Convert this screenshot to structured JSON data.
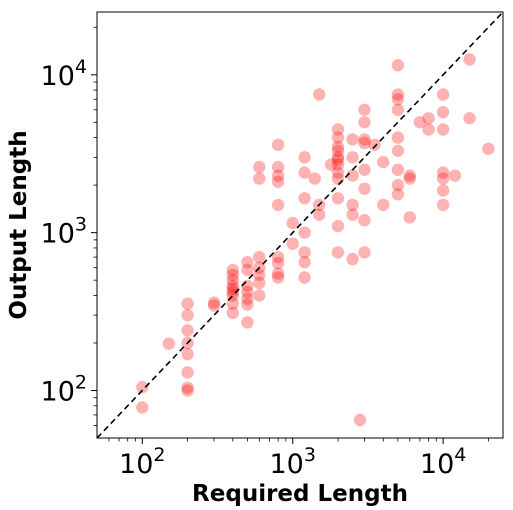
{
  "chart_data": {
    "type": "scatter",
    "xlabel": "Required Length",
    "ylabel": "Output Length",
    "x_scale": "log",
    "y_scale": "log",
    "xlim": [
      50,
      25000
    ],
    "ylim": [
      50,
      25000
    ],
    "grid": false,
    "x_ticks": [
      {
        "base": "10",
        "exp": "2",
        "value": 100
      },
      {
        "base": "10",
        "exp": "3",
        "value": 1000
      },
      {
        "base": "10",
        "exp": "4",
        "value": 10000
      }
    ],
    "y_ticks": [
      {
        "base": "10",
        "exp": "2",
        "value": 100
      },
      {
        "base": "10",
        "exp": "3",
        "value": 1000
      },
      {
        "base": "10",
        "exp": "4",
        "value": 10000
      }
    ],
    "reference_line": {
      "kind": "y = x",
      "style": "dashed",
      "color": "#000000"
    },
    "marker_color": "#ff0000",
    "marker_opacity": 0.3,
    "points": [
      [
        100,
        78
      ],
      [
        100,
        105
      ],
      [
        150,
        198
      ],
      [
        200,
        100
      ],
      [
        200,
        104
      ],
      [
        200,
        130
      ],
      [
        200,
        170
      ],
      [
        200,
        200
      ],
      [
        200,
        240
      ],
      [
        200,
        300
      ],
      [
        200,
        355
      ],
      [
        300,
        345
      ],
      [
        300,
        360
      ],
      [
        400,
        310
      ],
      [
        400,
        355
      ],
      [
        400,
        400
      ],
      [
        400,
        420
      ],
      [
        400,
        440
      ],
      [
        400,
        460
      ],
      [
        400,
        500
      ],
      [
        400,
        540
      ],
      [
        400,
        580
      ],
      [
        500,
        270
      ],
      [
        500,
        350
      ],
      [
        500,
        380
      ],
      [
        500,
        420
      ],
      [
        500,
        460
      ],
      [
        500,
        580
      ],
      [
        500,
        650
      ],
      [
        600,
        400
      ],
      [
        600,
        480
      ],
      [
        600,
        540
      ],
      [
        600,
        600
      ],
      [
        600,
        700
      ],
      [
        600,
        2200
      ],
      [
        600,
        2600
      ],
      [
        800,
        520
      ],
      [
        800,
        550
      ],
      [
        800,
        640
      ],
      [
        800,
        700
      ],
      [
        800,
        1500
      ],
      [
        800,
        2100
      ],
      [
        800,
        2300
      ],
      [
        800,
        2600
      ],
      [
        800,
        3600
      ],
      [
        1000,
        850
      ],
      [
        1000,
        1150
      ],
      [
        1200,
        520
      ],
      [
        1200,
        650
      ],
      [
        1200,
        750
      ],
      [
        1200,
        1000
      ],
      [
        1200,
        1650
      ],
      [
        1200,
        2400
      ],
      [
        1200,
        3000
      ],
      [
        1400,
        2200
      ],
      [
        1500,
        7500
      ],
      [
        1500,
        1300
      ],
      [
        1500,
        1500
      ],
      [
        1800,
        2700
      ],
      [
        2000,
        750
      ],
      [
        2000,
        1100
      ],
      [
        2000,
        1650
      ],
      [
        2000,
        2200
      ],
      [
        2000,
        2400
      ],
      [
        2000,
        2700
      ],
      [
        2000,
        2900
      ],
      [
        2000,
        3000
      ],
      [
        2000,
        3300
      ],
      [
        2000,
        3500
      ],
      [
        2000,
        4000
      ],
      [
        2000,
        4500
      ],
      [
        2500,
        680
      ],
      [
        2500,
        1300
      ],
      [
        2500,
        1500
      ],
      [
        2500,
        2300
      ],
      [
        2500,
        3000
      ],
      [
        2500,
        3900
      ],
      [
        2800,
        65
      ],
      [
        3000,
        750
      ],
      [
        3000,
        1200
      ],
      [
        3000,
        1900
      ],
      [
        3000,
        2500
      ],
      [
        3000,
        3700
      ],
      [
        3000,
        3900
      ],
      [
        3000,
        5000
      ],
      [
        3000,
        6000
      ],
      [
        3500,
        3600
      ],
      [
        4000,
        1500
      ],
      [
        4000,
        2800
      ],
      [
        5000,
        1750
      ],
      [
        5000,
        2000
      ],
      [
        5000,
        2500
      ],
      [
        5000,
        3300
      ],
      [
        5000,
        4000
      ],
      [
        5000,
        6000
      ],
      [
        5000,
        7000
      ],
      [
        5000,
        7500
      ],
      [
        5000,
        11500
      ],
      [
        6000,
        1250
      ],
      [
        6000,
        2200
      ],
      [
        6000,
        2300
      ],
      [
        7000,
        5000
      ],
      [
        8000,
        4500
      ],
      [
        8000,
        5300
      ],
      [
        10000,
        1500
      ],
      [
        10000,
        1850
      ],
      [
        10000,
        2200
      ],
      [
        10000,
        2400
      ],
      [
        10000,
        4500
      ],
      [
        10000,
        5800
      ],
      [
        10000,
        7500
      ],
      [
        12000,
        2300
      ],
      [
        15000,
        5300
      ],
      [
        15000,
        12500
      ],
      [
        20000,
        3400
      ]
    ]
  }
}
